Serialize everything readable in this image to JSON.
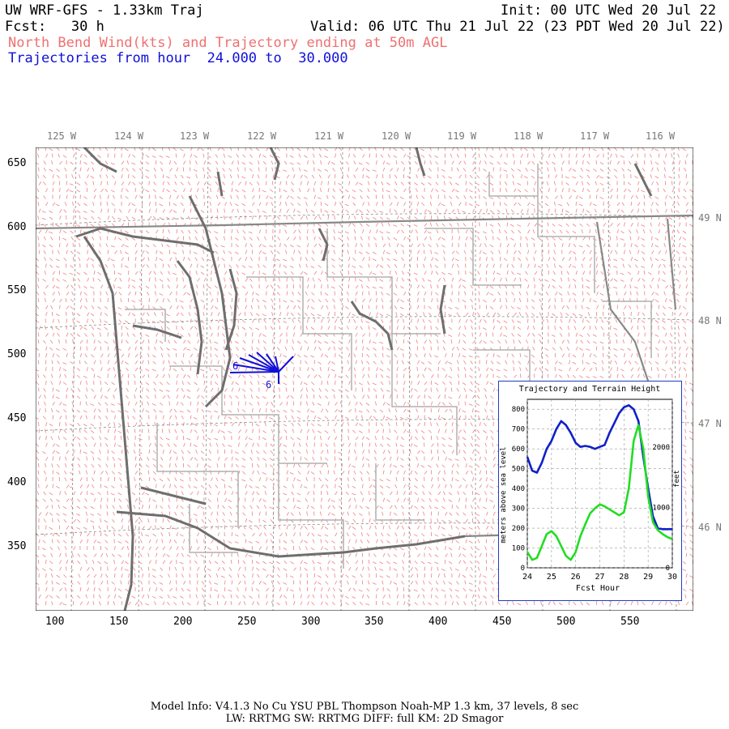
{
  "header": {
    "line1_left": "UW WRF-GFS - 1.33km Traj",
    "line1_right": "Init: 00 UTC Wed 20 Jul 22",
    "line2_left": "Fcst:   30 h",
    "line2_right": "Valid: 06 UTC Thu 21 Jul 22 (23 PDT Wed 20 Jul 22)",
    "line3": "North Bend Wind(kts) and Trajectory ending at 50m AGL",
    "line4": "Trajectories from hour  24.000 to  30.000"
  },
  "map": {
    "top_lon_labels": [
      "125 W",
      "124 W",
      "123 W",
      "122 W",
      "121 W",
      "120 W",
      "119 W",
      "118 W",
      "117 W",
      "116 W"
    ],
    "right_lat_labels": [
      "49 N",
      "48 N",
      "47 N",
      "46 N"
    ],
    "x_ticks": [
      "100",
      "150",
      "200",
      "250",
      "300",
      "350",
      "400",
      "450",
      "500",
      "550"
    ],
    "y_ticks": [
      "650",
      "600",
      "550",
      "500",
      "450",
      "400",
      "350"
    ],
    "trajectory_labels": [
      "6",
      "6"
    ],
    "colors": {
      "barbs": "#f08080",
      "coast": "#6e6e6e",
      "borders": "#b0b0b0",
      "trajectory": "#1010d8",
      "water": "#c070c0"
    }
  },
  "inset": {
    "title": "Trajectory and Terrain Height",
    "ylabel_left": "meters above sea level",
    "ylabel_right": "feet",
    "xlabel": "Fcst Hour",
    "left_ticks": [
      "800",
      "700",
      "600",
      "500",
      "400",
      "300",
      "200",
      "100",
      "0"
    ],
    "right_ticks": [
      "2000",
      "1000",
      "0"
    ],
    "x_ticks": [
      "24",
      "25",
      "26",
      "27",
      "28",
      "29",
      "30"
    ]
  },
  "chart_data": {
    "type": "line",
    "title": "Trajectory and Terrain Height",
    "xlabel": "Fcst Hour",
    "ylabel": "meters above sea level",
    "xlim": [
      24,
      30
    ],
    "ylim": [
      0,
      850
    ],
    "series": [
      {
        "color": "#1020c8",
        "x": [
          24.0,
          24.2,
          24.4,
          24.6,
          24.8,
          25.0,
          25.2,
          25.4,
          25.6,
          25.8,
          26.0,
          26.2,
          26.4,
          26.6,
          26.8,
          27.0,
          27.2,
          27.4,
          27.6,
          27.8,
          28.0,
          28.2,
          28.4,
          28.6,
          28.8,
          29.0,
          29.2,
          29.4,
          29.6,
          29.8,
          30.0
        ],
        "y": [
          560,
          490,
          480,
          530,
          600,
          640,
          700,
          740,
          720,
          680,
          630,
          610,
          615,
          610,
          600,
          610,
          620,
          680,
          730,
          780,
          810,
          820,
          800,
          740,
          560,
          400,
          260,
          200,
          195,
          195,
          195
        ]
      },
      {
        "color": "#22dd22",
        "x": [
          24.0,
          24.2,
          24.4,
          24.6,
          24.8,
          25.0,
          25.2,
          25.4,
          25.6,
          25.8,
          26.0,
          26.2,
          26.4,
          26.6,
          26.8,
          27.0,
          27.2,
          27.4,
          27.6,
          27.8,
          28.0,
          28.2,
          28.4,
          28.6,
          28.8,
          29.0,
          29.2,
          29.4,
          29.6,
          29.8,
          30.0
        ],
        "y": [
          80,
          40,
          50,
          110,
          170,
          185,
          160,
          110,
          60,
          40,
          80,
          160,
          220,
          275,
          300,
          320,
          310,
          295,
          280,
          265,
          280,
          400,
          640,
          720,
          600,
          360,
          230,
          190,
          170,
          155,
          145
        ]
      }
    ]
  },
  "footer": {
    "line1": "Model Info: V4.1.3    No Cu    YSU PBL  Thompson     Noah-MP    1.3 km,  37 levels,     8 sec",
    "line2": "LW: RRTMG SW: RRTMG    DIFF: full    KM: 2D Smagor"
  }
}
